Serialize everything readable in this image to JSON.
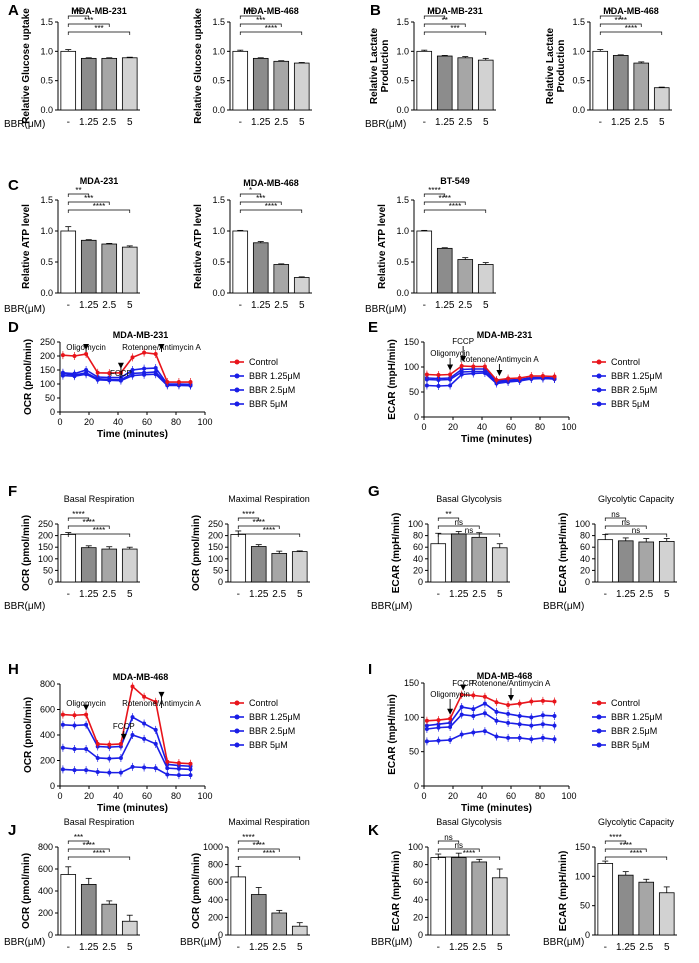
{
  "bbr_label": "BBR(μM)",
  "bbr_label2": "BBR(μM)",
  "x_categories": [
    "-",
    "1.25",
    "2.5",
    "5"
  ],
  "colors": {
    "control": "#e8141b",
    "treated": "#1a1ee6",
    "bar_fills": [
      "#ffffff",
      "#8c8c8c",
      "#a6a6a6",
      "#d2d2d2"
    ]
  },
  "legend_labels": [
    "Control",
    "BBR 1.25μM",
    "BBR 2.5μM",
    "BBR 5μM"
  ],
  "annotations": {
    "oligomycin": "Oligomycin",
    "fccp": "FCCP",
    "rot": "Rotenone/Antimycin A"
  },
  "chart_data": [
    {
      "id": "A1",
      "panel": "A",
      "type": "bar",
      "title": "MDA-MB-231",
      "ylabel": "Relative Glucose uptake",
      "ylim": [
        0,
        1.5
      ],
      "yticks": [
        "0.0",
        "0.5",
        "1.0",
        "1.5"
      ],
      "values": [
        1.0,
        0.88,
        0.88,
        0.89
      ],
      "errors": [
        0.03,
        0.01,
        0.01,
        0.01
      ],
      "significance": [
        "***",
        "***",
        "***"
      ]
    },
    {
      "id": "A2",
      "type": "bar",
      "title": "MDA-MB-468",
      "ylabel": "Relative Glucose uptake",
      "ylim": [
        0,
        1.5
      ],
      "yticks": [
        "0.0",
        "0.5",
        "1.0",
        "1.5"
      ],
      "values": [
        1.0,
        0.88,
        0.83,
        0.8
      ],
      "errors": [
        0.02,
        0.01,
        0.01,
        0.01
      ],
      "significance": [
        "***",
        "***",
        "****"
      ]
    },
    {
      "id": "B1",
      "panel": "B",
      "type": "bar",
      "title": "MDA-MB-231",
      "ylabel": "Relative Lactate Production",
      "ylim": [
        0,
        1.5
      ],
      "yticks": [
        "0.0",
        "0.5",
        "1.0",
        "1.5"
      ],
      "values": [
        1.0,
        0.92,
        0.89,
        0.85
      ],
      "errors": [
        0.02,
        0.01,
        0.02,
        0.03
      ],
      "significance": [
        "**",
        "**",
        "***"
      ]
    },
    {
      "id": "B2",
      "type": "bar",
      "title": "MDA-MB-468",
      "ylabel": "Relative Lactate Production",
      "ylim": [
        0,
        1.5
      ],
      "yticks": [
        "0.0",
        "0.5",
        "1.0",
        "1.5"
      ],
      "values": [
        1.0,
        0.93,
        0.8,
        0.38
      ],
      "errors": [
        0.03,
        0.01,
        0.02,
        0.01
      ],
      "significance": [
        "*",
        "****",
        "****"
      ]
    },
    {
      "id": "C1",
      "panel": "C",
      "type": "bar",
      "title": "MDA-231",
      "ylabel": "Relative ATP level",
      "ylim": [
        0,
        1.5
      ],
      "yticks": [
        "0.0",
        "0.5",
        "1.0",
        "1.5"
      ],
      "values": [
        1.0,
        0.85,
        0.79,
        0.74
      ],
      "errors": [
        0.07,
        0.01,
        0.01,
        0.02
      ],
      "significance": [
        "**",
        "***",
        "****"
      ]
    },
    {
      "id": "C2",
      "type": "bar",
      "title": "MDA-MB-468",
      "ylabel": "Relative ATP level",
      "ylim": [
        0,
        1.5
      ],
      "yticks": [
        "0.0",
        "0.5",
        "1.0",
        "1.5"
      ],
      "values": [
        1.0,
        0.81,
        0.46,
        0.25
      ],
      "errors": [
        0.01,
        0.02,
        0.01,
        0.01
      ],
      "significance": [
        "*",
        "***",
        "****"
      ]
    },
    {
      "id": "C3",
      "type": "bar",
      "title": "BT-549",
      "ylabel": "Relative ATP level",
      "ylim": [
        0,
        1.5
      ],
      "yticks": [
        "0.0",
        "0.5",
        "1.0",
        "1.5"
      ],
      "values": [
        1.0,
        0.72,
        0.54,
        0.46
      ],
      "errors": [
        0.01,
        0.01,
        0.03,
        0.03
      ],
      "significance": [
        "****",
        "****",
        "****"
      ]
    },
    {
      "id": "D",
      "panel": "D",
      "type": "line",
      "title": "MDA-MB-231",
      "ylabel": "OCR (pmol/min)",
      "xlabel": "Time (minutes)",
      "ylim": [
        0,
        250
      ],
      "yticks": [
        "0",
        "50",
        "100",
        "150",
        "200",
        "250"
      ],
      "xlim": [
        0,
        100
      ],
      "xticks": [
        "0",
        "20",
        "40",
        "60",
        "80",
        "100"
      ],
      "x": [
        2,
        10,
        18,
        26,
        34,
        42,
        50,
        58,
        66,
        74,
        82,
        90
      ],
      "series": [
        {
          "name": "Control",
          "values": [
            203,
            200,
            207,
            140,
            139,
            140,
            195,
            212,
            207,
            107,
            107,
            107
          ]
        },
        {
          "name": "BBR 1.25μM",
          "values": [
            140,
            137,
            150,
            125,
            123,
            123,
            150,
            155,
            157,
            100,
            100,
            99
          ]
        },
        {
          "name": "BBR 2.5μM",
          "values": [
            137,
            132,
            140,
            119,
            116,
            115,
            138,
            140,
            143,
            97,
            97,
            96
          ]
        },
        {
          "name": "BBR 5μM",
          "values": [
            130,
            128,
            135,
            115,
            113,
            112,
            130,
            133,
            135,
            95,
            95,
            94
          ]
        }
      ]
    },
    {
      "id": "E",
      "panel": "E",
      "type": "line",
      "title": "MDA-MB-231",
      "ylabel": "ECAR (mpH/min)",
      "xlabel": "Time (minutes)",
      "ylim": [
        0,
        150
      ],
      "yticks": [
        "0",
        "50",
        "100",
        "150"
      ],
      "xlim": [
        0,
        100
      ],
      "xticks": [
        "0",
        "20",
        "40",
        "60",
        "80",
        "100"
      ],
      "x": [
        2,
        10,
        18,
        26,
        34,
        42,
        50,
        58,
        66,
        74,
        82,
        90
      ],
      "series": [
        {
          "name": "Control",
          "values": [
            85,
            84,
            85,
            102,
            101,
            101,
            74,
            77,
            78,
            82,
            82,
            81
          ]
        },
        {
          "name": "BBR 1.25μM",
          "values": [
            78,
            77,
            78,
            95,
            96,
            96,
            72,
            74,
            75,
            79,
            79,
            78
          ]
        },
        {
          "name": "BBR 2.5μM",
          "values": [
            75,
            74,
            75,
            90,
            91,
            91,
            70,
            72,
            73,
            77,
            77,
            76
          ]
        },
        {
          "name": "BBR 5μM",
          "values": [
            63,
            62,
            63,
            85,
            87,
            88,
            67,
            70,
            72,
            76,
            77,
            76
          ]
        }
      ]
    },
    {
      "id": "F1",
      "panel": "F",
      "type": "bar",
      "title": "Basal Respiration",
      "ylabel": "OCR (pmol/min)",
      "ylim": [
        0,
        250
      ],
      "yticks": [
        "0",
        "50",
        "100",
        "150",
        "200",
        "250"
      ],
      "values": [
        205,
        148,
        142,
        142
      ],
      "errors": [
        8,
        8,
        10,
        8
      ],
      "significance": [
        "****",
        "****",
        "****"
      ]
    },
    {
      "id": "F2",
      "type": "bar",
      "title": "Maximal Respiration",
      "ylabel": "OCR (pmol/min)",
      "ylim": [
        0,
        250
      ],
      "yticks": [
        "0",
        "50",
        "100",
        "150",
        "200",
        "250"
      ],
      "values": [
        205,
        153,
        123,
        131
      ],
      "errors": [
        15,
        8,
        10,
        3
      ],
      "significance": [
        "****",
        "****",
        "****"
      ]
    },
    {
      "id": "G1",
      "panel": "G",
      "type": "bar",
      "title": "Basal Glycolysis",
      "ylabel": "ECAR (mpH/min)",
      "ylim": [
        0,
        100
      ],
      "yticks": [
        "0",
        "20",
        "40",
        "60",
        "80",
        "100"
      ],
      "values": [
        66,
        83,
        77,
        59
      ],
      "errors": [
        18,
        4,
        8,
        7
      ],
      "significance": [
        "**",
        "ns",
        "ns"
      ]
    },
    {
      "id": "G2",
      "type": "bar",
      "title": "Glycolytic Capacity",
      "ylabel": "ECAR (mpH/min)",
      "ylim": [
        0,
        100
      ],
      "yticks": [
        "0",
        "20",
        "40",
        "60",
        "80",
        "100"
      ],
      "values": [
        73,
        71,
        69,
        70
      ],
      "errors": [
        9,
        5,
        6,
        5
      ],
      "significance": [
        "ns",
        "ns",
        "ns"
      ]
    },
    {
      "id": "H",
      "panel": "H",
      "type": "line",
      "title": "MDA-MB-468",
      "ylabel": "OCR (pmol/min)",
      "xlabel": "Time (minutes)",
      "ylim": [
        0,
        800
      ],
      "yticks": [
        "0",
        "200",
        "400",
        "600",
        "800"
      ],
      "xlim": [
        0,
        100
      ],
      "xticks": [
        "0",
        "20",
        "40",
        "60",
        "80",
        "100"
      ],
      "x": [
        2,
        10,
        18,
        26,
        34,
        42,
        50,
        58,
        66,
        74,
        82,
        90
      ],
      "series": [
        {
          "name": "Control",
          "values": [
            560,
            555,
            560,
            330,
            325,
            330,
            780,
            700,
            660,
            190,
            180,
            175
          ]
        },
        {
          "name": "BBR 1.25μM",
          "values": [
            480,
            475,
            480,
            310,
            305,
            310,
            540,
            490,
            440,
            170,
            160,
            155
          ]
        },
        {
          "name": "BBR 2.5μM",
          "values": [
            300,
            290,
            290,
            220,
            215,
            220,
            400,
            370,
            330,
            140,
            135,
            130
          ]
        },
        {
          "name": "BBR 5μM",
          "values": [
            130,
            125,
            125,
            110,
            105,
            105,
            150,
            145,
            140,
            90,
            85,
            85
          ]
        }
      ]
    },
    {
      "id": "I",
      "panel": "I",
      "type": "line",
      "title": "MDA-MB-468",
      "ylabel": "ECAR (mpH/min)",
      "xlabel": "Time (minutes)",
      "ylim": [
        0,
        150
      ],
      "yticks": [
        "0",
        "50",
        "100",
        "150"
      ],
      "xlim": [
        0,
        100
      ],
      "xticks": [
        "0",
        "20",
        "40",
        "60",
        "80",
        "100"
      ],
      "x": [
        2,
        10,
        18,
        26,
        34,
        42,
        50,
        58,
        66,
        74,
        82,
        90
      ],
      "series": [
        {
          "name": "Control",
          "values": [
            95,
            96,
            98,
            133,
            132,
            130,
            122,
            118,
            120,
            123,
            124,
            123
          ]
        },
        {
          "name": "BBR 1.25μM",
          "values": [
            88,
            90,
            92,
            115,
            112,
            120,
            108,
            105,
            102,
            100,
            103,
            102
          ]
        },
        {
          "name": "BBR 2.5μM",
          "values": [
            83,
            85,
            86,
            104,
            102,
            106,
            95,
            92,
            90,
            88,
            90,
            88
          ]
        },
        {
          "name": "BBR 5μM",
          "values": [
            65,
            66,
            67,
            75,
            78,
            80,
            72,
            70,
            70,
            68,
            70,
            68
          ]
        }
      ]
    },
    {
      "id": "J1",
      "panel": "J",
      "type": "bar",
      "title": "Basal Respiration",
      "ylabel": "OCR (pmol/min)",
      "ylim": [
        0,
        800
      ],
      "yticks": [
        "0",
        "200",
        "400",
        "600",
        "800"
      ],
      "values": [
        550,
        460,
        280,
        125
      ],
      "errors": [
        70,
        55,
        30,
        55
      ],
      "significance": [
        "***",
        "****",
        "****"
      ]
    },
    {
      "id": "J2",
      "type": "bar",
      "title": "Maximal Respiration",
      "ylabel": "OCR (pmol/min)",
      "ylim": [
        0,
        1000
      ],
      "yticks": [
        "0",
        "200",
        "400",
        "600",
        "800",
        "1000"
      ],
      "values": [
        660,
        460,
        250,
        100
      ],
      "errors": [
        120,
        80,
        30,
        40
      ],
      "significance": [
        "****",
        "****",
        "****"
      ]
    },
    {
      "id": "K1",
      "panel": "K",
      "type": "bar",
      "title": "Basal Glycolysis",
      "ylabel": "ECAR (mpH/min)",
      "ylim": [
        0,
        100
      ],
      "yticks": [
        "0",
        "20",
        "40",
        "60",
        "80",
        "100"
      ],
      "values": [
        88,
        88,
        83,
        65
      ],
      "errors": [
        4,
        5,
        3,
        10
      ],
      "significance": [
        "ns",
        "ns",
        "****"
      ]
    },
    {
      "id": "K2",
      "type": "bar",
      "title": "Glycolytic Capacity",
      "ylabel": "ECAR (mpH/min)",
      "ylim": [
        0,
        150
      ],
      "yticks": [
        "0",
        "50",
        "100",
        "150"
      ],
      "values": [
        122,
        102,
        90,
        72
      ],
      "errors": [
        4,
        6,
        5,
        10
      ],
      "significance": [
        "****",
        "****",
        "****"
      ]
    }
  ]
}
